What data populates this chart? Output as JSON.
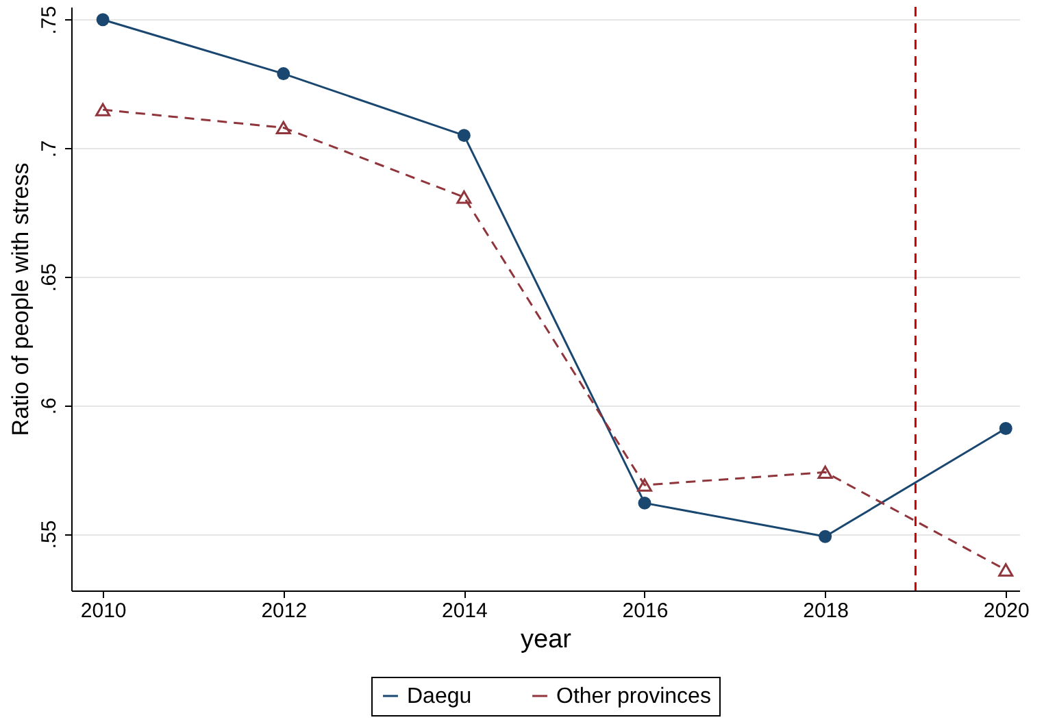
{
  "chart_data": {
    "type": "line",
    "xlabel": "year",
    "ylabel": "Ratio of people with stress",
    "x": [
      2010,
      2012,
      2014,
      2016,
      2018,
      2020
    ],
    "series": [
      {
        "name": "Daegu",
        "color": "#1a476f",
        "marker": "circle",
        "line_style": "solid",
        "values": [
          0.75,
          0.729,
          0.705,
          0.562,
          0.549,
          0.591
        ]
      },
      {
        "name": "Other provinces",
        "color": "#90353b",
        "marker": "triangle",
        "line_style": "dashed",
        "values": [
          0.715,
          0.708,
          0.681,
          0.569,
          0.574,
          0.536
        ]
      }
    ],
    "xlim": [
      2009.65,
      2020.15
    ],
    "xticks": [
      2010,
      2012,
      2014,
      2016,
      2018,
      2020
    ],
    "ylim": [
      0.528,
      0.755
    ],
    "yticks": [
      {
        "value": 0.55,
        "label": ".55"
      },
      {
        "value": 0.6,
        "label": ".6"
      },
      {
        "value": 0.65,
        "label": ".65"
      },
      {
        "value": 0.7,
        "label": ".7"
      },
      {
        "value": 0.75,
        "label": ".75"
      }
    ],
    "grid": "y",
    "legend": "bottom",
    "ref_lines": [
      {
        "axis": "x",
        "value": 2019,
        "color": "#cc0000",
        "line_style": "dashed"
      }
    ]
  }
}
